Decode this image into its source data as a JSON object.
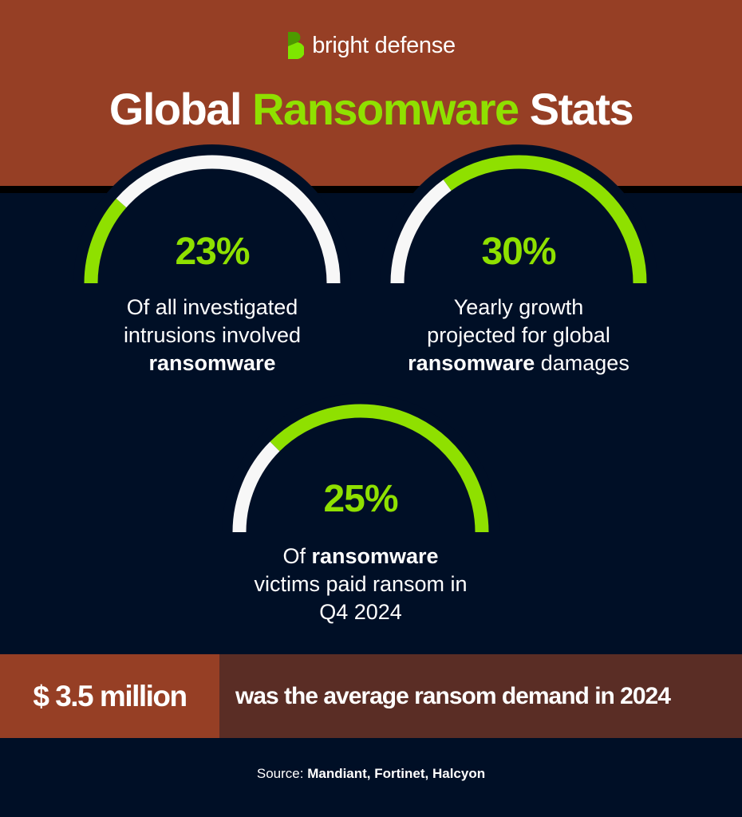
{
  "brand": {
    "name": "bright defense",
    "logo_icon": "bright-defense-b-logo",
    "colors": {
      "green_light": "#7ee600",
      "green_dark": "#4d9a00"
    }
  },
  "title": {
    "part1": "Global ",
    "accent": "Ransomware",
    "part2": " Stats"
  },
  "colors": {
    "header_bg": "#963f25",
    "body_bg": "#000f26",
    "accent_green": "#8fe000",
    "gauge_track": "#f7f7f7",
    "band_left": "#963f25",
    "band_right": "#5a2d25"
  },
  "stats": [
    {
      "percent": 23,
      "value_label": "23%",
      "green_segment": "start",
      "lines": [
        [
          {
            "t": "Of all investigated",
            "b": false
          }
        ],
        [
          {
            "t": "intrusions involved",
            "b": false
          }
        ],
        [
          {
            "t": "ransomware",
            "b": true
          }
        ]
      ]
    },
    {
      "percent": 30,
      "value_label": "30%",
      "green_segment": "end",
      "lines": [
        [
          {
            "t": "Yearly growth",
            "b": false
          }
        ],
        [
          {
            "t": "projected for global",
            "b": false
          }
        ],
        [
          {
            "t": "ransomware",
            "b": true
          },
          {
            "t": " damages",
            "b": false
          }
        ]
      ]
    },
    {
      "percent": 25,
      "value_label": "25%",
      "green_segment": "end",
      "lines": [
        [
          {
            "t": "Of ",
            "b": false
          },
          {
            "t": "ransomware",
            "b": true
          }
        ],
        [
          {
            "t": "victims paid ransom in",
            "b": false
          }
        ],
        [
          {
            "t": "Q4 2024",
            "b": false
          }
        ]
      ]
    }
  ],
  "highlight": {
    "amount": "$ 3.5 million",
    "text": "was the average ransom demand in 2024"
  },
  "source": {
    "prefix": "Source: ",
    "names": "Mandiant, Fortinet, Halcyon"
  }
}
